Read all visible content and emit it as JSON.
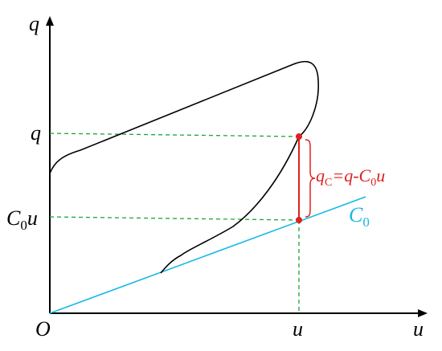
{
  "axes": {
    "y_label": "q",
    "x_label": "u",
    "origin": "O"
  },
  "ticks": {
    "y_upper": "q",
    "y_lower": {
      "base": "C",
      "sub": "0",
      "rest": "u"
    },
    "x": "u"
  },
  "line_label": {
    "base": "C",
    "sub": "0"
  },
  "annotation": {
    "base": "q",
    "sub": "C",
    "rest1": "=q-",
    "base2": "C",
    "sub2": "0",
    "rest2": "u"
  }
}
